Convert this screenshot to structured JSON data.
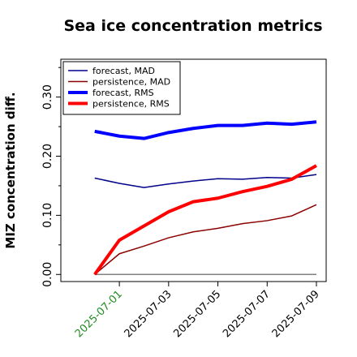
{
  "chart_data": {
    "type": "line",
    "title": "Sea ice concentration metrics",
    "y_label": "MIZ concentration diff.",
    "x": [
      "2025-06-30",
      "2025-07-01",
      "2025-07-02",
      "2025-07-03",
      "2025-07-04",
      "2025-07-05",
      "2025-07-06",
      "2025-07-07",
      "2025-07-08",
      "2025-07-09"
    ],
    "series": [
      {
        "name": "forecast,  MAD",
        "color": "#00008b",
        "linewidth": 1.5,
        "values": [
          0.163,
          0.154,
          0.147,
          0.153,
          0.158,
          0.162,
          0.161,
          0.164,
          0.163,
          0.169
        ]
      },
      {
        "name": "persistence, MAD",
        "color": "#8b0000",
        "linewidth": 1.5,
        "values": [
          0,
          0.035,
          0.048,
          0.062,
          0.072,
          0.078,
          0.086,
          0.091,
          0.099,
          0.118
        ]
      },
      {
        "name": "forecast,  RMS",
        "color": "#0000ff",
        "linewidth": 4,
        "values": [
          0.242,
          0.234,
          0.23,
          0.24,
          0.247,
          0.252,
          0.252,
          0.256,
          0.254,
          0.258
        ]
      },
      {
        "name": "persistence, RMS",
        "color": "#ff0000",
        "linewidth": 4,
        "values": [
          0,
          0.058,
          0.082,
          0.106,
          0.123,
          0.129,
          0.14,
          0.149,
          0.161,
          0.184
        ]
      }
    ],
    "hline": {
      "value": 0,
      "color": "#808080"
    },
    "xlim": [
      "2025-06-28T15:00",
      "2025-07-09T09:30"
    ],
    "xticks": [
      "2025-07-01",
      "2025-07-03",
      "2025-07-05",
      "2025-07-07",
      "2025-07-09"
    ],
    "xtick_label_colors": [
      "#228b22",
      "#000000",
      "#000000",
      "#000000",
      "#000000"
    ],
    "ylim": [
      -0.012,
      0.364
    ],
    "yticks": [
      {
        "value": 0,
        "label": "0.00"
      },
      {
        "value": 0.1,
        "label": "0.10"
      },
      {
        "value": 0.2,
        "label": "0.20"
      },
      {
        "value": 0.3,
        "label": "0.30"
      }
    ],
    "yminor": [
      0.05,
      0.15,
      0.25,
      0.35
    ],
    "legend": "upper left"
  }
}
